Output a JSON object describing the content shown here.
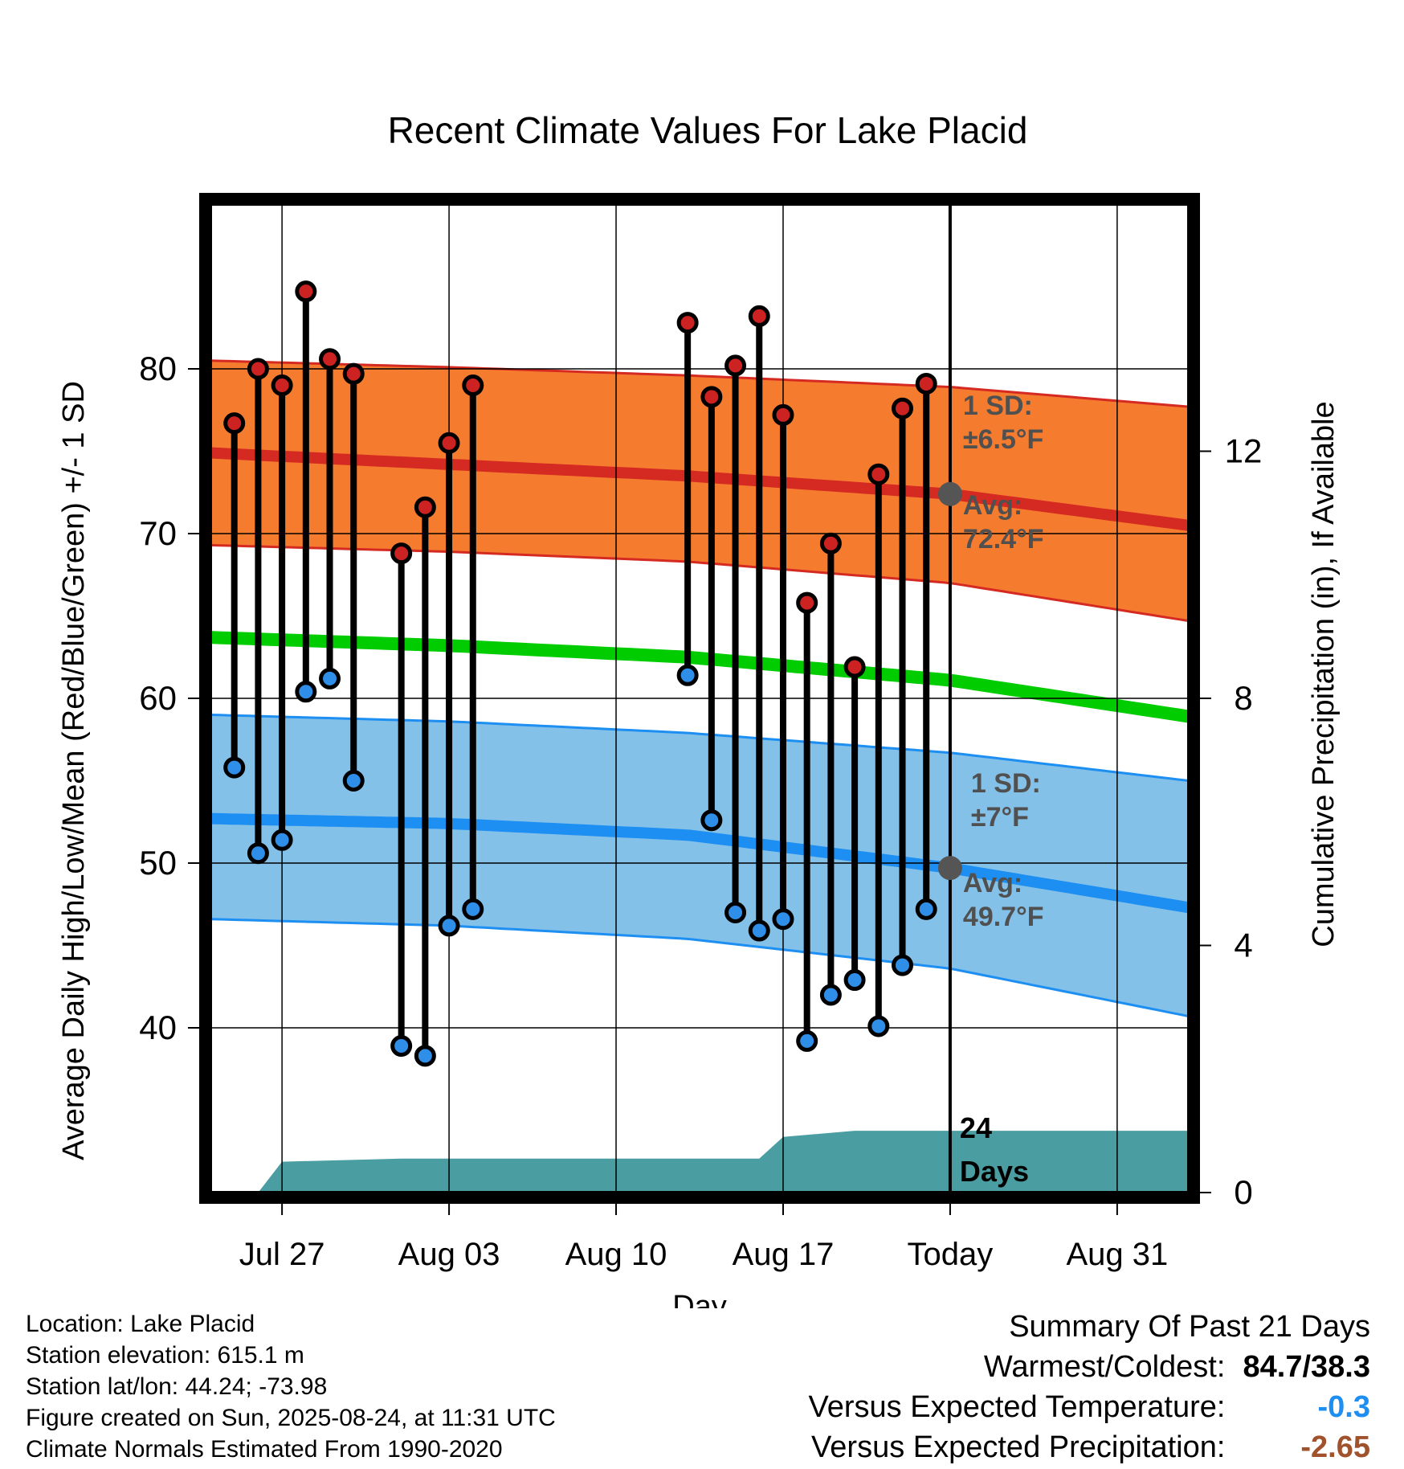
{
  "chart_data": {
    "type": "range-line",
    "title": "Recent Climate Values For Lake Placid",
    "xlabel": "Day",
    "ylabel_left": "Average Daily High/Low/Mean (Red/Blue/Green) +/- 1 SD",
    "ylabel_right": "Cumulative Precipitation (in), If Available",
    "x_range": [
      "2025-07-24",
      "2025-09-03"
    ],
    "y_left_range": [
      30,
      90
    ],
    "y_left_ticks": [
      40,
      50,
      60,
      70,
      80
    ],
    "y_right_range": [
      0,
      16
    ],
    "y_right_ticks": [
      0,
      4,
      8,
      12
    ],
    "x_ticks": [
      {
        "date": "2025-07-27",
        "label": "Jul 27"
      },
      {
        "date": "2025-08-03",
        "label": "Aug 03"
      },
      {
        "date": "2025-08-10",
        "label": "Aug 10"
      },
      {
        "date": "2025-08-17",
        "label": "Aug 17"
      },
      {
        "date": "2025-08-24",
        "label": "Today"
      },
      {
        "date": "2025-08-31",
        "label": "Aug 31"
      }
    ],
    "today": "2025-08-24",
    "today_label": "24\nDays",
    "grid": true,
    "observations": [
      {
        "date": "2025-07-25",
        "high": 76.7,
        "low": 55.8
      },
      {
        "date": "2025-07-26",
        "high": 80.0,
        "low": 50.6
      },
      {
        "date": "2025-07-27",
        "high": 79.0,
        "low": 51.4
      },
      {
        "date": "2025-07-28",
        "high": 84.7,
        "low": 60.4
      },
      {
        "date": "2025-07-29",
        "high": 80.6,
        "low": 61.2
      },
      {
        "date": "2025-07-30",
        "high": 79.7,
        "low": 55.0
      },
      {
        "date": "2025-08-01",
        "high": 68.8,
        "low": 38.9
      },
      {
        "date": "2025-08-02",
        "high": 71.6,
        "low": 38.3
      },
      {
        "date": "2025-08-03",
        "high": 75.5,
        "low": 46.2
      },
      {
        "date": "2025-08-04",
        "high": 79.0,
        "low": 47.2
      },
      {
        "date": "2025-08-13",
        "high": 82.8,
        "low": 61.4
      },
      {
        "date": "2025-08-14",
        "high": 78.3,
        "low": 52.6
      },
      {
        "date": "2025-08-15",
        "high": 80.2,
        "low": 47.0
      },
      {
        "date": "2025-08-16",
        "high": 83.2,
        "low": 45.9
      },
      {
        "date": "2025-08-17",
        "high": 77.2,
        "low": 46.6
      },
      {
        "date": "2025-08-18",
        "high": 65.8,
        "low": 39.2
      },
      {
        "date": "2025-08-19",
        "high": 69.4,
        "low": 42.0
      },
      {
        "date": "2025-08-20",
        "high": 61.9,
        "low": 42.9
      },
      {
        "date": "2025-08-21",
        "high": 73.6,
        "low": 40.1
      },
      {
        "date": "2025-08-22",
        "high": 77.6,
        "low": 43.8
      },
      {
        "date": "2025-08-23",
        "high": 79.1,
        "low": 47.2
      }
    ],
    "normal_high": {
      "dates": [
        "2025-07-24",
        "2025-08-03",
        "2025-08-13",
        "2025-08-24",
        "2025-09-03"
      ],
      "mean": [
        74.9,
        74.2,
        73.5,
        72.4,
        70.5
      ],
      "upper": [
        80.5,
        80.1,
        79.6,
        78.9,
        77.7
      ],
      "lower": [
        69.3,
        68.9,
        68.3,
        67.0,
        64.7
      ]
    },
    "normal_low": {
      "dates": [
        "2025-07-24",
        "2025-08-03",
        "2025-08-13",
        "2025-08-24",
        "2025-09-03"
      ],
      "mean": [
        52.7,
        52.4,
        51.7,
        49.7,
        47.3
      ],
      "upper": [
        59.0,
        58.6,
        57.9,
        56.7,
        55.0
      ],
      "lower": [
        46.6,
        46.2,
        45.4,
        43.6,
        40.7
      ]
    },
    "normal_mean": {
      "dates": [
        "2025-07-24",
        "2025-08-03",
        "2025-08-13",
        "2025-08-24",
        "2025-09-03"
      ],
      "values": [
        63.7,
        63.2,
        62.5,
        61.1,
        58.9
      ]
    },
    "precipitation": {
      "dates": [
        "2025-07-26",
        "2025-07-27",
        "2025-08-01",
        "2025-08-16",
        "2025-08-17",
        "2025-08-20",
        "2025-08-24",
        "2025-09-03"
      ],
      "values": [
        0.0,
        0.5,
        0.55,
        0.55,
        0.9,
        1.0,
        1.0,
        1.0
      ]
    },
    "annotations": {
      "high_sd_label": "1 SD:",
      "high_sd_value": "±6.5",
      "high_avg_label": "Avg:",
      "high_avg_value": "72.4",
      "low_sd_label": "1 SD:",
      "low_sd_value": "±7",
      "low_avg_label": "Avg:",
      "low_avg_value": "49.7",
      "degree_unit": "°F"
    },
    "colors": {
      "high_band": "#f57c2f",
      "high_line": "#d52a22",
      "low_band": "#84c1e8",
      "low_line": "#1e8ff2",
      "mean_line": "#00cc00",
      "precip": "#4a9ea2",
      "annotation_text": "#505050",
      "high_marker": "#cc2222",
      "low_marker": "#2f8fe8"
    }
  },
  "footer": {
    "location": "Location: Lake Placid",
    "elevation": "Station elevation: 615.1 m",
    "latlon": "Station lat/lon: 44.24; -73.98",
    "created": "Figure created on Sun, 2025-08-24, at 11:31 UTC",
    "normals": "Climate Normals Estimated From 1990-2020"
  },
  "summary": {
    "title": "Summary Of Past 21 Days",
    "warmest_label": "Warmest/Coldest:",
    "warmest_value": "84.7/38.3",
    "temp_label": "Versus Expected Temperature:",
    "temp_value": "-0.3",
    "temp_color": "#1e8ff2",
    "precip_label": "Versus Expected Precipitation:",
    "precip_value": "-2.65",
    "precip_color": "#a0522d"
  }
}
